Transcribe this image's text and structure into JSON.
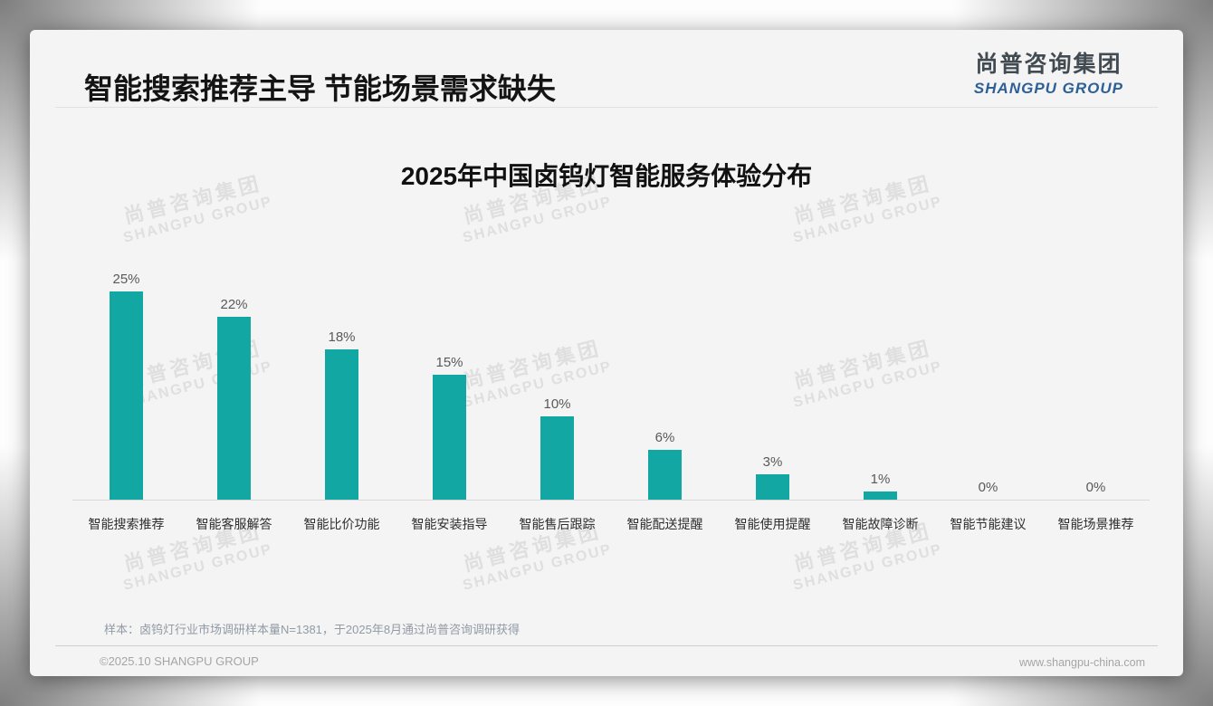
{
  "header": {
    "title": "智能搜索推荐主导 节能场景需求缺失"
  },
  "logo": {
    "name_cn": "尚普咨询集团",
    "name_en": "SHANGPU GROUP"
  },
  "watermark": {
    "line1": "尚普咨询集团",
    "line2": "SHANGPU GROUP"
  },
  "chart_data": {
    "type": "bar",
    "title": "2025年中国卤钨灯智能服务体验分布",
    "categories": [
      "智能搜索推荐",
      "智能客服解答",
      "智能比价功能",
      "智能安装指导",
      "智能售后跟踪",
      "智能配送提醒",
      "智能使用提醒",
      "智能故障诊断",
      "智能节能建议",
      "智能场景推荐"
    ],
    "values": [
      25,
      22,
      18,
      15,
      10,
      6,
      3,
      1,
      0,
      0
    ],
    "value_labels": [
      "25%",
      "22%",
      "18%",
      "15%",
      "10%",
      "6%",
      "3%",
      "1%",
      "0%",
      "0%"
    ],
    "value_suffix": "%",
    "bar_color": "#12a7a3",
    "ylim": [
      0,
      27
    ],
    "grid": false,
    "legend": false,
    "xlabel": "",
    "ylabel": ""
  },
  "footnote": "样本：卤钨灯行业市场调研样本量N=1381，于2025年8月通过尚普咨询调研获得",
  "footer": {
    "copyright": "©2025.10 SHANGPU GROUP",
    "website": "www.shangpu-china.com"
  }
}
